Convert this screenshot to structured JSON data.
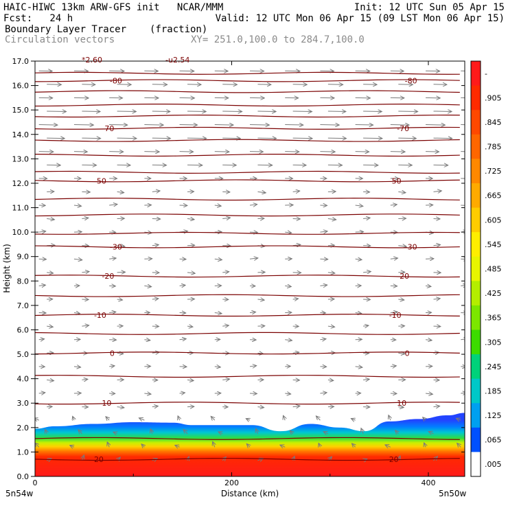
{
  "header": {
    "line1_left": "HAIC-HIWC 13km ARW-GFS init   NCAR/MMM",
    "line1_right": "Init: 12 UTC Sun 05 Apr 15",
    "line2_left": "Fcst:   24 h",
    "line2_right": "Valid: 12 UTC Mon 06 Apr 15 (09 LST Mon 06 Apr 15)",
    "line3_field": "Boundary Layer Tracer",
    "line3_units": "(fraction)",
    "line4_field": "Circulation vectors",
    "line4_xy": "XY= 251.0,100.0 to 284.7,100.0"
  },
  "chart_data": {
    "type": "heatmap",
    "xlabel": "Distance (km)",
    "ylabel": "Height (km)",
    "xlim": [
      0,
      437
    ],
    "ylim": [
      0,
      17
    ],
    "x_ticks": [
      0,
      200,
      400
    ],
    "y_ticks": [
      "0.0",
      "1.0",
      "2.0",
      "3.0",
      "4.0",
      "5.0",
      "6.0",
      "7.0",
      "8.0",
      "9.0",
      "10.0",
      "11.0",
      "12.0",
      "13.0",
      "14.0",
      "15.0",
      "16.0",
      "17.0"
    ],
    "x_endpoint_labels": [
      "5n54w",
      "5n50w"
    ],
    "top_partial_labels": [
      "*2.60",
      "-u2.54"
    ],
    "colorbar_labels": [
      "-",
      ".905",
      ".845",
      ".785",
      ".725",
      ".665",
      ".605",
      ".545",
      ".485",
      ".425",
      ".365",
      ".305",
      ".245",
      ".185",
      ".125",
      ".065",
      ".005"
    ],
    "colorbar_colors": [
      "#ff1a1a",
      "#ff2a00",
      "#ff4800",
      "#ff6600",
      "#ff8800",
      "#ffaa00",
      "#ffcc00",
      "#ffee00",
      "#e8f500",
      "#b4ee00",
      "#7ce600",
      "#3cdc00",
      "#00d27a",
      "#00c8c8",
      "#00a0f0",
      "#0050ff",
      "#ffffff"
    ],
    "temperature_contours": [
      {
        "label": "20",
        "height_km": 0.7
      },
      {
        "label": "10",
        "height_km": 3.0
      },
      {
        "label": "0",
        "height_km": 5.05
      },
      {
        "label": "-10",
        "height_km": 6.6
      },
      {
        "label": "-20",
        "height_km": 8.2
      },
      {
        "label": "-30",
        "height_km": 9.4
      },
      {
        "label": "-50",
        "height_km": 12.1
      },
      {
        "label": "-70",
        "height_km": 14.25
      },
      {
        "label": "-80",
        "height_km": 16.2
      }
    ],
    "unlabeled_contour_heights_km": [
      1.55,
      4.1,
      5.85,
      7.4,
      9.95,
      10.7,
      11.35,
      12.45,
      13.15,
      13.75,
      14.75,
      15.2,
      15.75,
      16.5
    ],
    "tracer_top_km": [
      [
        0,
        1.95
      ],
      [
        20,
        2.05
      ],
      [
        60,
        2.15
      ],
      [
        100,
        2.22
      ],
      [
        140,
        2.2
      ],
      [
        160,
        2.1
      ],
      [
        190,
        2.1
      ],
      [
        220,
        2.1
      ],
      [
        250,
        1.85
      ],
      [
        280,
        2.15
      ],
      [
        310,
        2.0
      ],
      [
        335,
        1.85
      ],
      [
        360,
        2.25
      ],
      [
        390,
        2.35
      ],
      [
        420,
        2.5
      ],
      [
        437,
        2.6
      ]
    ]
  }
}
